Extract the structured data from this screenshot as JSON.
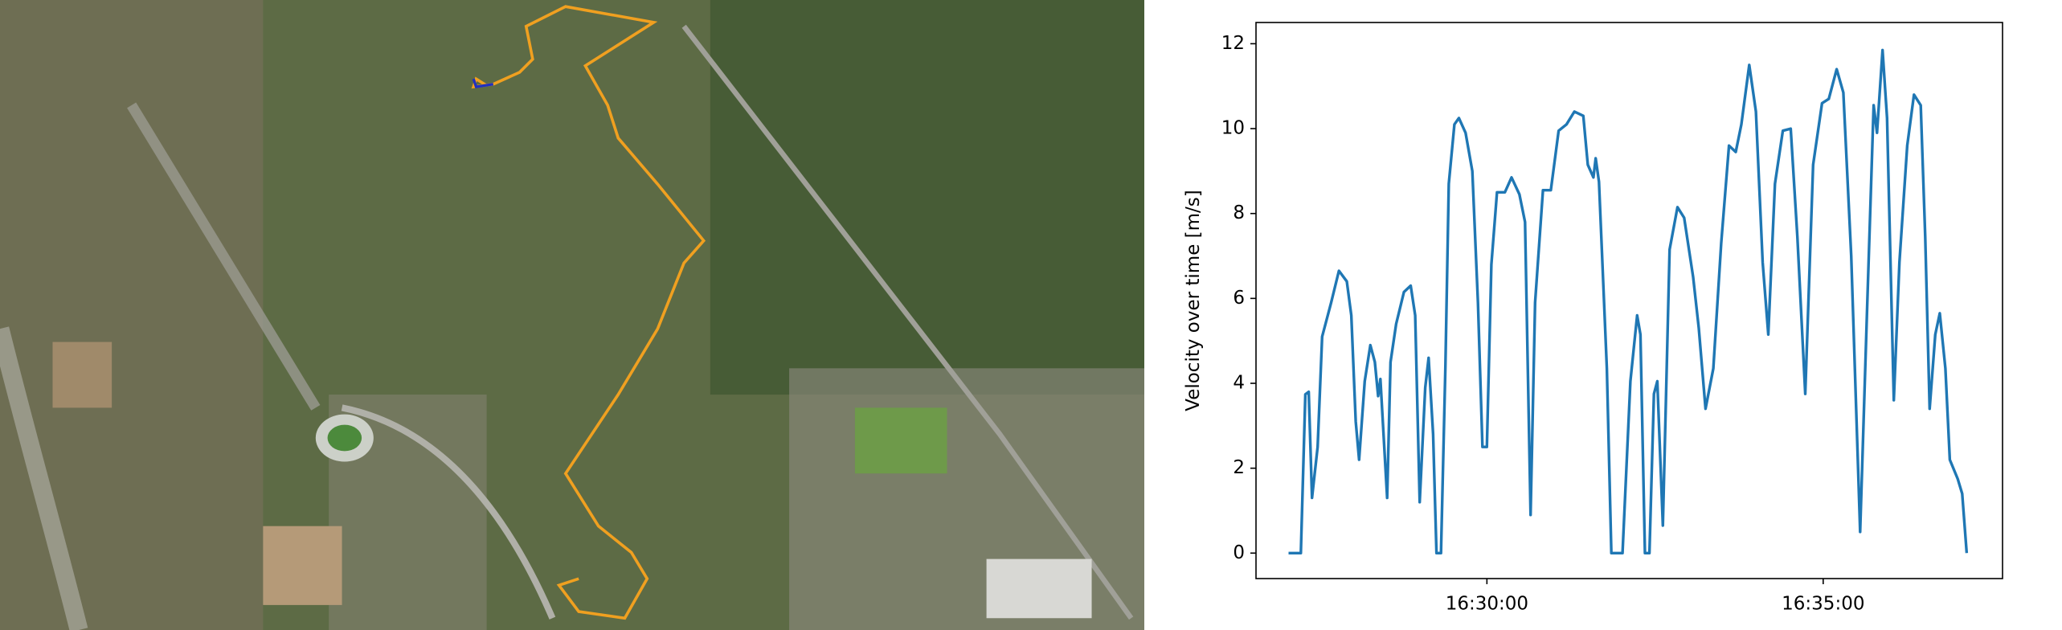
{
  "chart_data": {
    "type": "line",
    "y_label": "Velocity over time [m/s]",
    "color": "#1f77b4",
    "x": [
      "16:27:03",
      "16:27:14",
      "16:27:18",
      "16:27:21",
      "16:27:24",
      "16:27:29",
      "16:27:33",
      "16:27:41",
      "16:27:48",
      "16:27:55",
      "16:27:59",
      "16:28:03",
      "16:28:06",
      "16:28:11",
      "16:28:16",
      "16:28:20",
      "16:28:23",
      "16:28:25",
      "16:28:31",
      "16:28:34",
      "16:28:39",
      "16:28:46",
      "16:28:52",
      "16:28:56",
      "16:29:00",
      "16:29:05",
      "16:29:08",
      "16:29:12",
      "16:29:15",
      "16:29:19",
      "16:29:23",
      "16:29:26",
      "16:29:31",
      "16:29:35",
      "16:29:41",
      "16:29:47",
      "16:29:52",
      "16:29:56",
      "16:30:00",
      "16:30:04",
      "16:30:09",
      "16:30:16",
      "16:30:22",
      "16:30:29",
      "16:30:34",
      "16:30:39",
      "16:30:43",
      "16:30:50",
      "16:30:57",
      "16:31:04",
      "16:31:11",
      "16:31:18",
      "16:31:26",
      "16:31:30",
      "16:31:35",
      "16:31:37",
      "16:31:40",
      "16:31:47",
      "16:31:51",
      "16:32:01",
      "16:32:08",
      "16:32:14",
      "16:32:17",
      "16:32:21",
      "16:32:25",
      "16:32:29",
      "16:32:32",
      "16:32:37",
      "16:32:43",
      "16:32:50",
      "16:32:56",
      "16:33:04",
      "16:33:09",
      "16:33:15",
      "16:33:22",
      "16:33:29",
      "16:33:36",
      "16:33:42",
      "16:33:47",
      "16:33:54",
      "16:34:00",
      "16:34:06",
      "16:34:11",
      "16:34:17",
      "16:34:24",
      "16:34:31",
      "16:34:37",
      "16:34:44",
      "16:34:51",
      "16:34:59",
      "16:35:05",
      "16:35:12",
      "16:35:18",
      "16:35:25",
      "16:35:33",
      "16:35:39",
      "16:35:45",
      "16:35:48",
      "16:35:53",
      "16:35:57",
      "16:36:03",
      "16:36:08",
      "16:36:15",
      "16:36:21",
      "16:36:27",
      "16:36:31",
      "16:36:35",
      "16:36:40",
      "16:36:44",
      "16:36:49",
      "16:36:53",
      "16:37:00",
      "16:37:04",
      "16:37:08"
    ],
    "values": [
      0,
      0,
      3.74,
      3.8,
      1.3,
      2.5,
      5.1,
      5.9,
      6.65,
      6.4,
      5.6,
      3.1,
      2.2,
      4.05,
      4.9,
      4.5,
      3.7,
      4.1,
      1.3,
      4.5,
      5.4,
      6.15,
      6.3,
      5.6,
      1.2,
      3.9,
      4.6,
      2.8,
      0,
      0,
      4.4,
      8.7,
      10.1,
      10.25,
      9.9,
      9.0,
      5.9,
      2.5,
      2.5,
      6.8,
      8.5,
      8.5,
      8.85,
      8.45,
      7.8,
      0.9,
      5.9,
      8.55,
      8.55,
      9.95,
      10.1,
      10.4,
      10.3,
      9.15,
      8.85,
      9.3,
      8.75,
      4.35,
      0,
      0,
      4.05,
      5.6,
      5.15,
      0,
      0,
      3.75,
      4.05,
      0.65,
      7.15,
      8.15,
      7.9,
      6.5,
      5.3,
      3.4,
      4.35,
      7.3,
      9.6,
      9.45,
      10.1,
      11.5,
      10.4,
      6.85,
      5.15,
      8.7,
      9.95,
      10.0,
      7.45,
      3.75,
      9.15,
      10.6,
      10.7,
      11.4,
      10.85,
      7.0,
      0.5,
      5.6,
      10.55,
      9.9,
      11.85,
      10.25,
      3.6,
      6.85,
      9.6,
      10.8,
      10.55,
      7.45,
      3.4,
      5.15,
      5.65,
      4.35,
      2.2,
      1.75,
      1.4,
      0
    ],
    "xlim": [
      "16:26:34",
      "16:37:40"
    ],
    "xticks": [
      "16:30:00",
      "16:35:00"
    ],
    "ylim": [
      -0.6,
      12.5
    ],
    "yticks": [
      0,
      2,
      4,
      6,
      8,
      10,
      12
    ]
  }
}
